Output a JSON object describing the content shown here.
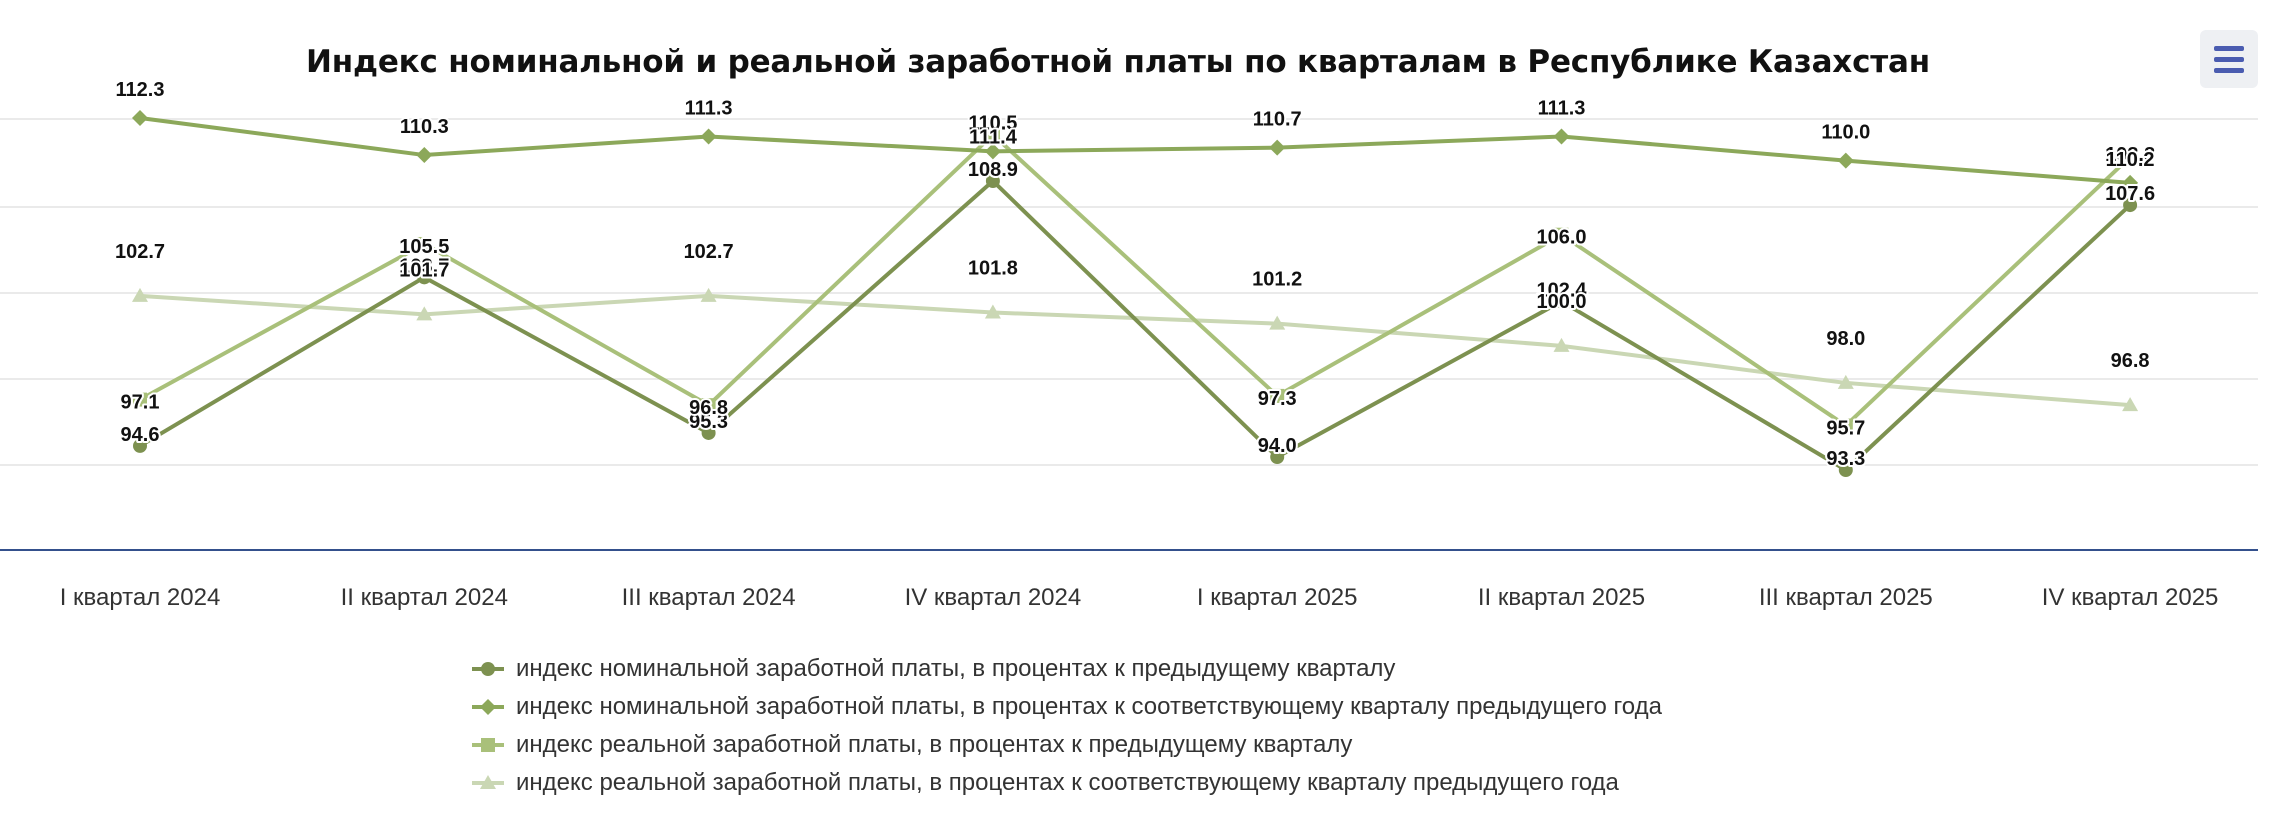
{
  "menu": {
    "icon": "hamburger-menu-icon"
  },
  "colors": {
    "s1": "#7d9150",
    "s2": "#8ca85a",
    "s3": "#a9c07a",
    "s4": "#cad7b4",
    "grid": "#e4e4e4",
    "axis": "#34508c"
  },
  "chart_data": {
    "type": "line",
    "title": "Индекс номинальной и реальной заработной платы по кварталам в Республике Казахстан",
    "categories": [
      "I квартал 2024",
      "II квартал 2024",
      "III квартал 2024",
      "IV квартал 2024",
      "I квартал 2025",
      "II квартал 2025",
      "III квартал 2025",
      "IV квартал 2025"
    ],
    "xlabel": "",
    "ylabel": "",
    "ylim": [
      88,
      118
    ],
    "grid": true,
    "legend_position": "bottom",
    "series": [
      {
        "name": "индекс номинальной заработной платы, в процентах к предыдущему кварталу",
        "marker": "circle",
        "values": [
          94.6,
          103.7,
          95.3,
          108.9,
          94.0,
          102.4,
          93.3,
          107.6
        ]
      },
      {
        "name": "индекс номинальной заработной платы, в процентах к соответствующему кварталу предыдущего года",
        "marker": "diamond",
        "values": [
          112.3,
          110.3,
          111.3,
          110.5,
          110.7,
          111.3,
          110.0,
          108.8
        ]
      },
      {
        "name": "индекс реальной заработной платы, в процентах к предыдущему кварталу",
        "marker": "square",
        "values": [
          97.1,
          105.5,
          96.8,
          111.4,
          97.3,
          106.0,
          95.7,
          110.2
        ]
      },
      {
        "name": "индекс реальной заработной платы, в процентах к соответствующему кварталу предыдущего года",
        "marker": "triangle",
        "values": [
          102.7,
          101.7,
          102.7,
          101.8,
          101.2,
          100.0,
          98.0,
          96.8
        ]
      }
    ]
  }
}
